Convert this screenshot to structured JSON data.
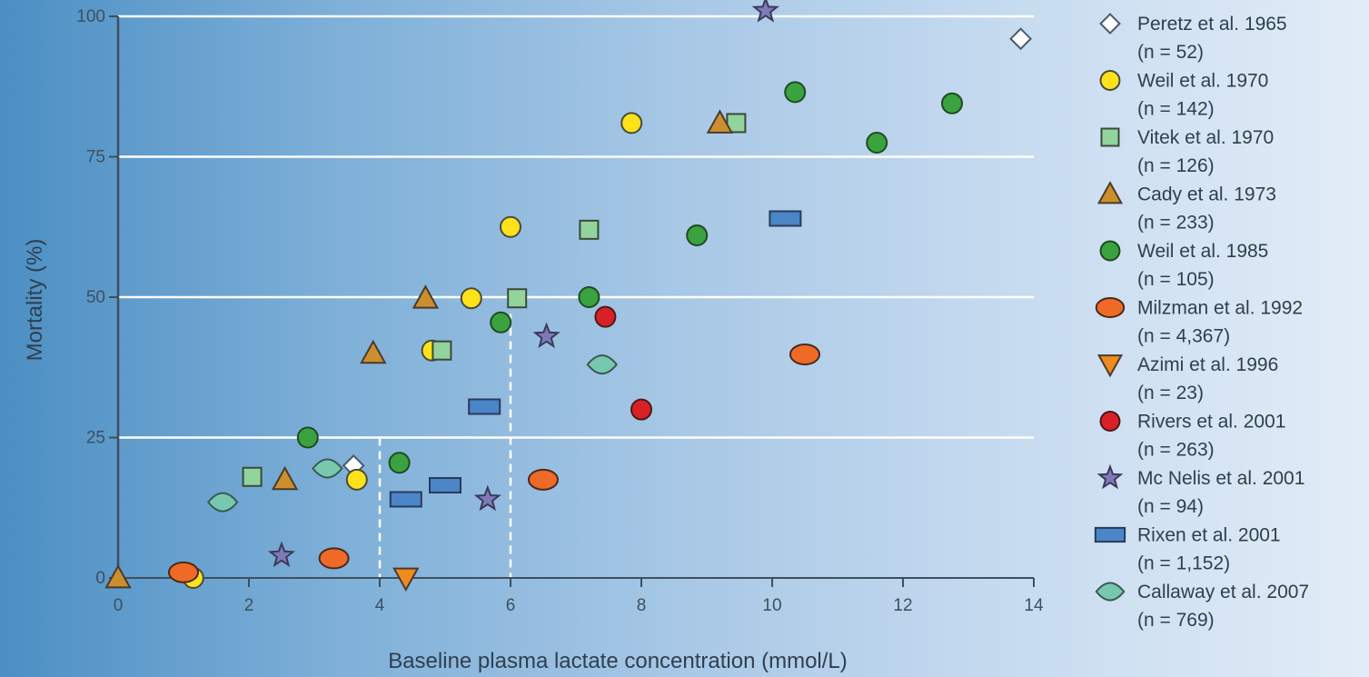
{
  "chart_data": {
    "type": "scatter",
    "xlabel": "Baseline plasma lactate concentration (mmol/L)",
    "ylabel": "Mortality (%)",
    "xlim": [
      0,
      14
    ],
    "ylim": [
      0,
      100
    ],
    "xticks": [
      "0",
      "2",
      "4",
      "6",
      "8",
      "10",
      "12",
      "14"
    ],
    "yticks": [
      "0",
      "25",
      "50",
      "75",
      "100"
    ],
    "grid": "horizontal",
    "legend_position": "right",
    "reference_lines": [
      {
        "x": 4,
        "y": 25
      },
      {
        "x": 6,
        "y": 47
      }
    ],
    "series": [
      {
        "name": "Peretz et al. 1965",
        "n_label": "(n = 52)",
        "marker": "diamond",
        "color": "#ffffff",
        "stroke": "#4a5a6a",
        "points": [
          [
            3.6,
            20
          ],
          [
            13.8,
            96
          ]
        ]
      },
      {
        "name": "Weil et al. 1970",
        "n_label": "(n = 142)",
        "marker": "circle",
        "color": "#ffe21a",
        "stroke": "#4a4a3a",
        "points": [
          [
            1.15,
            0
          ],
          [
            3.65,
            17.5
          ],
          [
            4.8,
            40.5
          ],
          [
            5.4,
            49.8
          ],
          [
            6.0,
            62.5
          ],
          [
            7.85,
            81
          ]
        ]
      },
      {
        "name": "Vitek et al. 1970",
        "n_label": "(n = 126)",
        "marker": "square",
        "color": "#93d39c",
        "stroke": "#3a4a3a",
        "points": [
          [
            2.05,
            18
          ],
          [
            4.95,
            40.5
          ],
          [
            6.1,
            49.8
          ],
          [
            7.2,
            62
          ],
          [
            9.45,
            81
          ]
        ]
      },
      {
        "name": "Cady et al. 1973",
        "n_label": "(n = 233)",
        "marker": "triangle-up",
        "color": "#cc8f2e",
        "stroke": "#4a3a2a",
        "points": [
          [
            0.0,
            0
          ],
          [
            2.55,
            17.5
          ],
          [
            3.9,
            40
          ],
          [
            4.7,
            49.8
          ],
          [
            9.2,
            81
          ]
        ]
      },
      {
        "name": "Weil et al. 1985",
        "n_label": "(n = 105)",
        "marker": "circle",
        "color": "#3aa23e",
        "stroke": "#1f4a22",
        "points": [
          [
            2.9,
            25
          ],
          [
            4.3,
            20.5
          ],
          [
            5.85,
            45.5
          ],
          [
            7.2,
            50
          ],
          [
            8.85,
            61
          ],
          [
            10.35,
            86.5
          ],
          [
            11.6,
            77.5
          ],
          [
            12.75,
            84.5
          ]
        ]
      },
      {
        "name": "Milzman et al. 1992",
        "n_label": "(n = 4,367)",
        "marker": "ellipse",
        "color": "#ef6a26",
        "stroke": "#4a2a1a",
        "points": [
          [
            1.0,
            1
          ],
          [
            3.3,
            3.5
          ],
          [
            6.5,
            17.5
          ],
          [
            10.5,
            39.8
          ]
        ]
      },
      {
        "name": "Azimi et al. 1996",
        "n_label": "(n = 23)",
        "marker": "triangle-down",
        "color": "#ef8a20",
        "stroke": "#4a3a2a",
        "points": [
          [
            4.4,
            0
          ]
        ]
      },
      {
        "name": "Rivers et al. 2001",
        "n_label": "(n = 263)",
        "marker": "circle",
        "color": "#d92026",
        "stroke": "#4a1a1a",
        "points": [
          [
            7.45,
            46.5
          ],
          [
            8.0,
            30
          ]
        ]
      },
      {
        "name": "Mc Nelis et al. 2001",
        "n_label": "(n = 94)",
        "marker": "star",
        "color": "#8079b8",
        "stroke": "#3a3a5a",
        "points": [
          [
            2.5,
            4
          ],
          [
            5.65,
            14
          ],
          [
            6.55,
            43
          ],
          [
            9.9,
            101
          ]
        ]
      },
      {
        "name": "Rixen et al. 2001",
        "n_label": "(n = 1,152)",
        "marker": "rect",
        "color": "#4a86c8",
        "stroke": "#2a3a5a",
        "points": [
          [
            4.4,
            14
          ],
          [
            5.0,
            16.5
          ],
          [
            5.6,
            30.5
          ],
          [
            10.2,
            64
          ]
        ]
      },
      {
        "name": "Callaway et al. 2007",
        "n_label": "(n = 769)",
        "marker": "leaf",
        "color": "#78c8b0",
        "stroke": "#3a5a50",
        "points": [
          [
            1.6,
            13.5
          ],
          [
            3.2,
            19.5
          ],
          [
            7.4,
            38
          ]
        ]
      }
    ]
  }
}
